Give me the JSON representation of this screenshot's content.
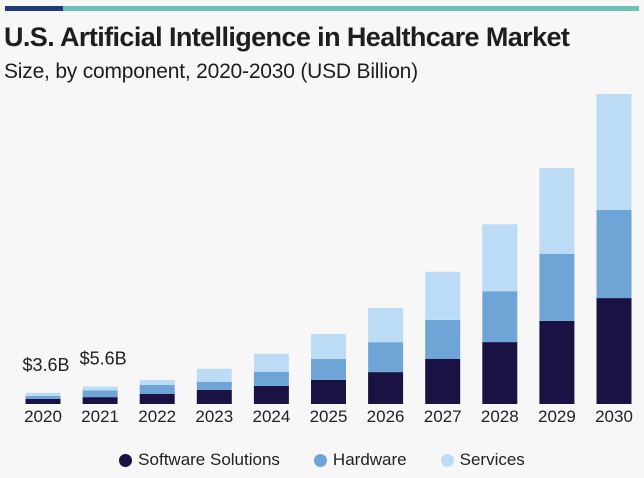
{
  "header": {
    "title": "U.S. Artificial Intelligence in Healthcare Market",
    "subtitle": "Size, by component, 2020-2030 (USD Billion)"
  },
  "colors": {
    "stripe_navy": "#1f3a7a",
    "stripe_teal": "#6cc0b8",
    "software": "#1a1242",
    "hardware": "#6fa5d6",
    "services": "#bcdcf5"
  },
  "chart_data": {
    "type": "bar",
    "stacked": true,
    "title": "U.S. Artificial Intelligence in Healthcare Market",
    "subtitle": "Size, by component, 2020-2030 (USD Billion)",
    "xlabel": "",
    "ylabel": "",
    "ylim": [
      0,
      100
    ],
    "grid": false,
    "legend_position": "bottom",
    "categories": [
      "2020",
      "2021",
      "2022",
      "2023",
      "2024",
      "2025",
      "2026",
      "2027",
      "2028",
      "2029",
      "2030"
    ],
    "series": [
      {
        "name": "Software Solutions",
        "color": "#1a1242",
        "values": [
          1.6,
          2.2,
          3.2,
          4.5,
          5.8,
          7.7,
          10.2,
          14.4,
          19.8,
          26.6,
          33.9
        ]
      },
      {
        "name": "Hardware",
        "color": "#6fa5d6",
        "values": [
          1.0,
          2.2,
          2.9,
          2.6,
          4.5,
          6.7,
          9.6,
          12.5,
          16.3,
          21.4,
          28.2
        ]
      },
      {
        "name": "Services",
        "color": "#bcdcf5",
        "values": [
          1.0,
          1.2,
          1.6,
          4.2,
          5.8,
          8.0,
          10.9,
          15.4,
          21.4,
          27.5,
          37.1
        ]
      }
    ],
    "annotations": [
      {
        "category": "2020",
        "text": "$3.6B"
      },
      {
        "category": "2021",
        "text": "$5.6B"
      }
    ]
  },
  "legend": [
    {
      "label": "Software Solutions",
      "color": "#1a1242"
    },
    {
      "label": "Hardware",
      "color": "#6fa5d6"
    },
    {
      "label": "Services",
      "color": "#bcdcf5"
    }
  ]
}
